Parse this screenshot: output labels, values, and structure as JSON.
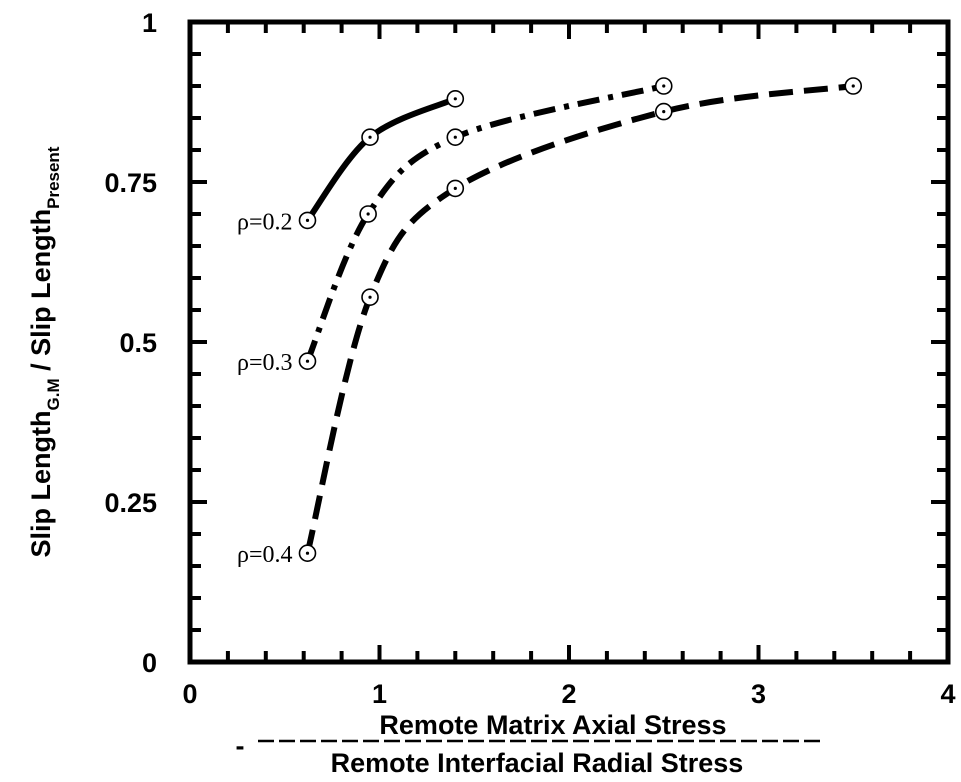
{
  "chart_data": {
    "type": "line",
    "xlim": [
      0,
      4
    ],
    "ylim": [
      0,
      1
    ],
    "grid": false,
    "x_ticks": [
      "0",
      "1",
      "2",
      "3",
      "4"
    ],
    "y_ticks": [
      "0",
      "0.25",
      "0.5",
      "0.75",
      "1"
    ],
    "ylabel": {
      "main": "Slip Length",
      "sub1": "G.M",
      "mid": " / Slip Length",
      "sub2": "Present"
    },
    "xlabel": {
      "prefix": "-",
      "numerator": "Remote Matrix Axial Stress",
      "denominator": "Remote Interfacial Radial Stress"
    },
    "series": [
      {
        "name": "ρ=0.2",
        "style": "solid",
        "x": [
          0.62,
          0.95,
          1.4
        ],
        "y": [
          0.69,
          0.82,
          0.88
        ]
      },
      {
        "name": "ρ=0.3",
        "style": "dashdot",
        "x": [
          0.62,
          0.94,
          1.4,
          2.5
        ],
        "y": [
          0.47,
          0.7,
          0.82,
          0.9
        ]
      },
      {
        "name": "ρ=0.4",
        "style": "dashed",
        "x": [
          0.62,
          0.95,
          1.4,
          2.5,
          3.5
        ],
        "y": [
          0.17,
          0.57,
          0.74,
          0.86,
          0.9
        ]
      }
    ]
  }
}
